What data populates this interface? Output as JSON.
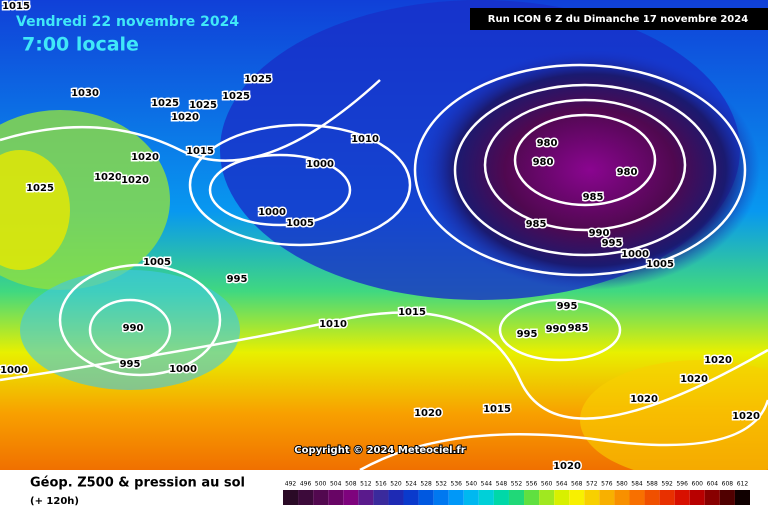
{
  "header": {
    "date": "Vendredi 22 novembre 2024",
    "time": "7:00 locale",
    "run": "Run ICON 6 Z du Dimanche 17 novembre 2024"
  },
  "copyright": "Copyright © 2024 Meteociel.fr",
  "footer": {
    "title": "Géop. Z500 & pression au sol",
    "lead": "(+ 120h)"
  },
  "isobar_labels": [
    1015,
    1030,
    1025,
    1025,
    1025,
    1025,
    1020,
    1020,
    1015,
    1020,
    1020,
    1025,
    1010,
    1000,
    1000,
    1005,
    1005,
    995,
    990,
    995,
    1000,
    1000,
    1010,
    1015,
    980,
    980,
    980,
    985,
    985,
    990,
    995,
    1000,
    1005,
    995,
    995,
    990,
    985,
    1015,
    1020,
    1020,
    1020,
    1020,
    1020,
    1020
  ],
  "legend": {
    "items": [
      {
        "value": 492,
        "color": "#2a0a26"
      },
      {
        "value": 496,
        "color": "#3c0a3a"
      },
      {
        "value": 500,
        "color": "#52084f"
      },
      {
        "value": 504,
        "color": "#680565"
      },
      {
        "value": 508,
        "color": "#7e037d"
      },
      {
        "value": 512,
        "color": "#5a1a8c"
      },
      {
        "value": 516,
        "color": "#3a2a9c"
      },
      {
        "value": 520,
        "color": "#1e2ab4"
      },
      {
        "value": 524,
        "color": "#0a3acc"
      },
      {
        "value": 528,
        "color": "#0058e0"
      },
      {
        "value": 532,
        "color": "#0078f0"
      },
      {
        "value": 536,
        "color": "#0098f8"
      },
      {
        "value": 540,
        "color": "#00b8f0"
      },
      {
        "value": 544,
        "color": "#00d0d8"
      },
      {
        "value": 548,
        "color": "#00d8a8"
      },
      {
        "value": 552,
        "color": "#20d878"
      },
      {
        "value": 556,
        "color": "#60e040"
      },
      {
        "value": 560,
        "color": "#a0e820"
      },
      {
        "value": 564,
        "color": "#d8f000"
      },
      {
        "value": 568,
        "color": "#f8f000"
      },
      {
        "value": 572,
        "color": "#f8d000"
      },
      {
        "value": 576,
        "color": "#f8b000"
      },
      {
        "value": 580,
        "color": "#f89000"
      },
      {
        "value": 584,
        "color": "#f87000"
      },
      {
        "value": 588,
        "color": "#f05000"
      },
      {
        "value": 592,
        "color": "#e83000"
      },
      {
        "value": 596,
        "color": "#d81000"
      },
      {
        "value": 600,
        "color": "#b80000"
      },
      {
        "value": 604,
        "color": "#880000"
      },
      {
        "value": 608,
        "color": "#500000"
      },
      {
        "value": 612,
        "color": "#100000"
      }
    ]
  }
}
